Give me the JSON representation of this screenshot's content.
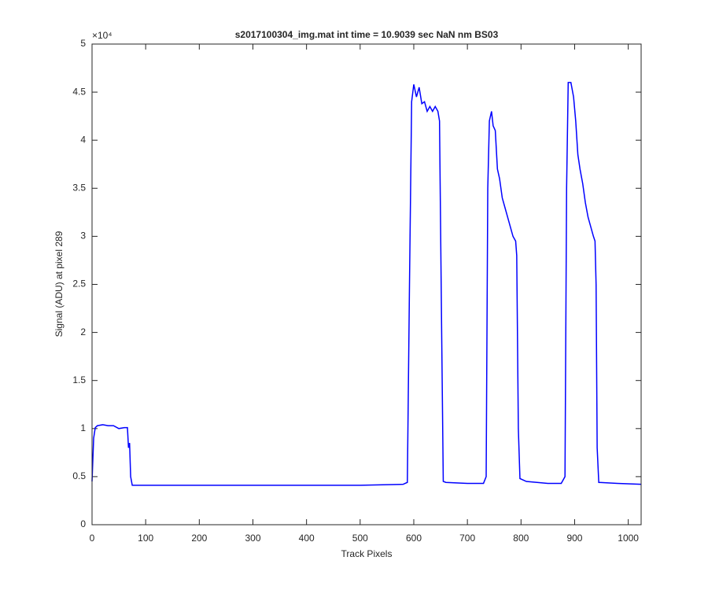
{
  "chart_data": {
    "type": "line",
    "title": "s2017100304_img.mat int time = 10.9039 sec  NaN nm BS03",
    "x_label": "Track Pixels",
    "y_label": "Signal (ADU) at pixel 289",
    "y_exponent": "×10⁴",
    "xlim": [
      0,
      1024
    ],
    "ylim": [
      0,
      5
    ],
    "xticks": [
      0,
      100,
      200,
      300,
      400,
      500,
      600,
      700,
      800,
      900,
      1000
    ],
    "yticks": [
      0,
      0.5,
      1,
      1.5,
      2,
      2.5,
      3,
      3.5,
      4,
      4.5,
      5
    ],
    "series": [
      {
        "color": "#0000ff",
        "x": [
          0,
          3,
          6,
          10,
          20,
          30,
          40,
          50,
          60,
          66,
          68,
          70,
          72,
          75,
          100,
          200,
          300,
          400,
          500,
          580,
          588,
          592,
          596,
          600,
          605,
          610,
          615,
          620,
          625,
          630,
          635,
          640,
          645,
          648,
          652,
          655,
          660,
          700,
          730,
          735,
          738,
          741,
          745,
          748,
          752,
          756,
          760,
          765,
          770,
          775,
          780,
          785,
          790,
          792,
          795,
          798,
          810,
          850,
          875,
          882,
          885,
          888,
          893,
          898,
          902,
          906,
          910,
          915,
          920,
          925,
          930,
          935,
          938,
          940,
          942,
          945,
          980,
          1024
        ],
        "values": [
          0.45,
          0.9,
          1.01,
          1.03,
          1.04,
          1.03,
          1.03,
          1.0,
          1.01,
          1.01,
          0.8,
          0.85,
          0.5,
          0.41,
          0.41,
          0.41,
          0.41,
          0.41,
          0.41,
          0.42,
          0.44,
          2.5,
          4.4,
          4.58,
          4.45,
          4.55,
          4.38,
          4.4,
          4.3,
          4.35,
          4.3,
          4.35,
          4.3,
          4.2,
          2.0,
          0.45,
          0.44,
          0.43,
          0.43,
          0.5,
          3.5,
          4.2,
          4.3,
          4.15,
          4.1,
          3.7,
          3.6,
          3.4,
          3.3,
          3.2,
          3.1,
          3.0,
          2.95,
          2.8,
          1.0,
          0.48,
          0.45,
          0.43,
          0.43,
          0.5,
          3.5,
          4.6,
          4.6,
          4.45,
          4.2,
          3.85,
          3.7,
          3.55,
          3.35,
          3.2,
          3.1,
          3.0,
          2.95,
          2.5,
          0.8,
          0.44,
          0.43,
          0.42
        ]
      }
    ]
  }
}
